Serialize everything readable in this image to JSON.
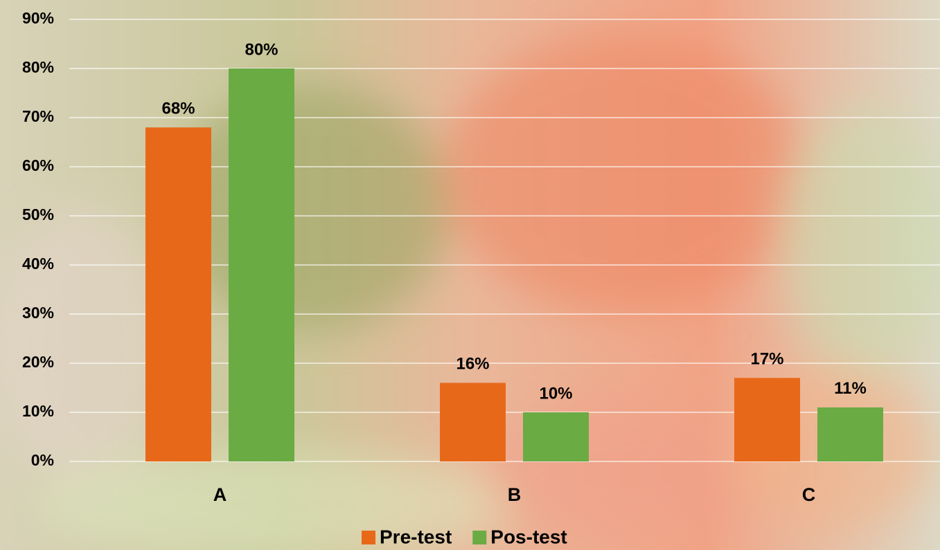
{
  "chart_data": {
    "type": "bar",
    "categories": [
      "A",
      "B",
      "C"
    ],
    "series": [
      {
        "name": "Pre-test",
        "color": "#e8681a",
        "values": [
          68,
          16,
          17
        ],
        "value_labels": [
          "68%",
          "16%",
          "17%"
        ]
      },
      {
        "name": "Pos-test",
        "color": "#6aab44",
        "values": [
          80,
          10,
          11
        ],
        "value_labels": [
          "80%",
          "10%",
          "11%"
        ]
      }
    ],
    "ylim": [
      0,
      90
    ],
    "yticks": [
      {
        "value": 0,
        "label": "0%"
      },
      {
        "value": 10,
        "label": "10%"
      },
      {
        "value": 20,
        "label": "20%"
      },
      {
        "value": 30,
        "label": "30%"
      },
      {
        "value": 40,
        "label": "40%"
      },
      {
        "value": 50,
        "label": "50%"
      },
      {
        "value": 60,
        "label": "60%"
      },
      {
        "value": 70,
        "label": "70%"
      },
      {
        "value": 80,
        "label": "80%"
      },
      {
        "value": 90,
        "label": "90%"
      }
    ],
    "grid": true,
    "legend": "bottom"
  }
}
